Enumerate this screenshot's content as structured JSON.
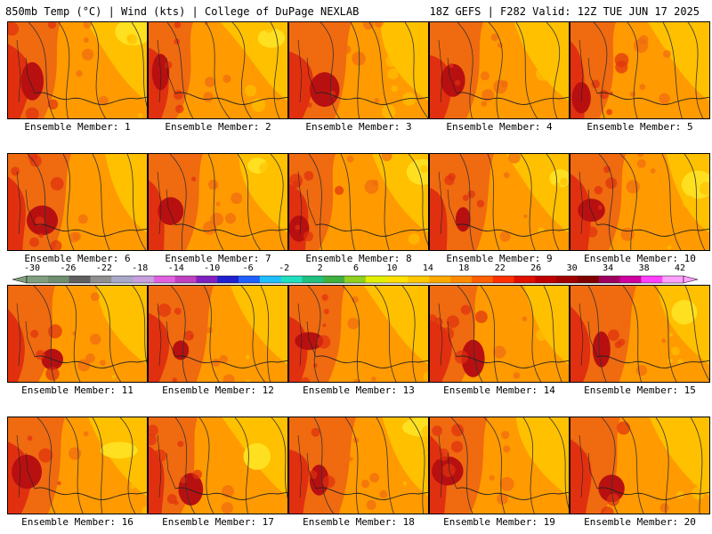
{
  "header": {
    "left_title": "850mb Temp (°C) | Wind (kts) | College of DuPage NEXLAB",
    "right_title": "18Z GEFS | F282 Valid: 12Z TUE JUN 17 2025"
  },
  "panels": [
    {
      "label": "Ensemble Member: 1"
    },
    {
      "label": "Ensemble Member: 2"
    },
    {
      "label": "Ensemble Member: 3"
    },
    {
      "label": "Ensemble Member: 4"
    },
    {
      "label": "Ensemble Member: 5"
    },
    {
      "label": "Ensemble Member: 6"
    },
    {
      "label": "Ensemble Member: 7"
    },
    {
      "label": "Ensemble Member: 8"
    },
    {
      "label": "Ensemble Member: 9"
    },
    {
      "label": "Ensemble Member: 10"
    },
    {
      "label": "Ensemble Member: 11"
    },
    {
      "label": "Ensemble Member: 12"
    },
    {
      "label": "Ensemble Member: 13"
    },
    {
      "label": "Ensemble Member: 14"
    },
    {
      "label": "Ensemble Member: 15"
    },
    {
      "label": "Ensemble Member: 16"
    },
    {
      "label": "Ensemble Member: 17"
    },
    {
      "label": "Ensemble Member: 18"
    },
    {
      "label": "Ensemble Member: 19"
    },
    {
      "label": "Ensemble Member: 20"
    }
  ],
  "colorbar": {
    "tick_labels": [
      "-30",
      "-26",
      "-22",
      "-18",
      "-14",
      "-10",
      "-6",
      "-2",
      "2",
      "6",
      "10",
      "14",
      "18",
      "22",
      "26",
      "30",
      "34",
      "38",
      "42"
    ],
    "colors": [
      "#7f9f7f",
      "#6f8f6f",
      "#5f5f5f",
      "#8f8f8f",
      "#a8a8c8",
      "#c8a0e0",
      "#e060e0",
      "#c040c0",
      "#8020c0",
      "#2020d0",
      "#2060ff",
      "#20c0ff",
      "#20e0c0",
      "#20c080",
      "#40b040",
      "#90d020",
      "#e0f000",
      "#ffe000",
      "#ffc800",
      "#ffa800",
      "#ff8c00",
      "#ff6000",
      "#ff3000",
      "#e01000",
      "#c00000",
      "#a00000",
      "#800000",
      "#a00060",
      "#d000a0",
      "#ff40ff",
      "#ffa0ff"
    ],
    "main_colors": {
      "orange": "#ff9a00",
      "deep_orange": "#f06a10",
      "red": "#e03010",
      "dark_red": "#b81010",
      "yellow_orange": "#ffc000",
      "yellow": "#ffe020"
    }
  }
}
